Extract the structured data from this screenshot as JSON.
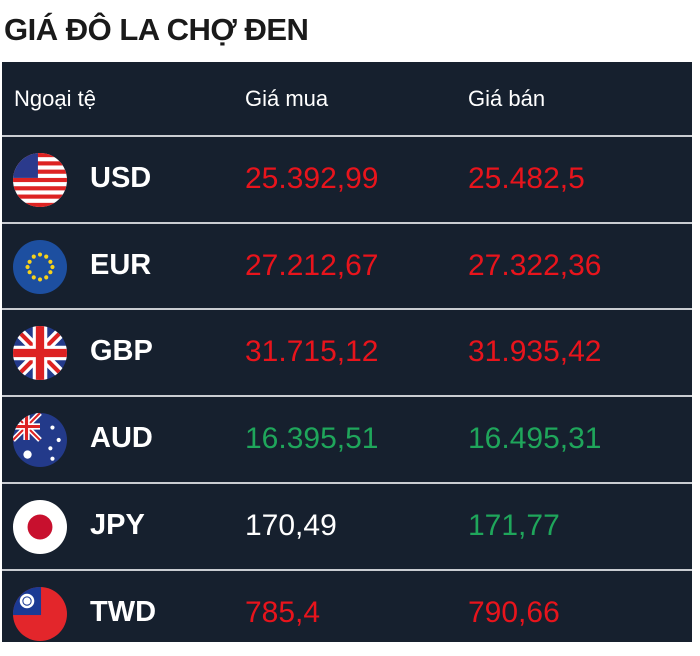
{
  "title": "GIÁ ĐÔ LA CHỢ ĐEN",
  "table": {
    "header": [
      "Ngoại tệ",
      "Giá mua",
      "Giá bán"
    ],
    "rows": [
      {
        "code": "USD",
        "buy": "25.392,99",
        "sell": "25.482,5",
        "buy_color": "#e8141c",
        "sell_color": "#e8141c"
      },
      {
        "code": "EUR",
        "buy": "27.212,67",
        "sell": "27.322,36",
        "buy_color": "#e8141c",
        "sell_color": "#e8141c"
      },
      {
        "code": "GBP",
        "buy": "31.715,12",
        "sell": "31.935,42",
        "buy_color": "#e8141c",
        "sell_color": "#e8141c"
      },
      {
        "code": "AUD",
        "buy": "16.395,51",
        "sell": "16.495,31",
        "buy_color": "#1fa65b",
        "sell_color": "#1fa65b"
      },
      {
        "code": "JPY",
        "buy": "170,49",
        "sell": "171,77",
        "buy_color": "#ffffff",
        "sell_color": "#1fa65b"
      },
      {
        "code": "TWD",
        "buy": "785,4",
        "sell": "790,66",
        "buy_color": "#e8141c",
        "sell_color": "#e8141c"
      }
    ]
  }
}
